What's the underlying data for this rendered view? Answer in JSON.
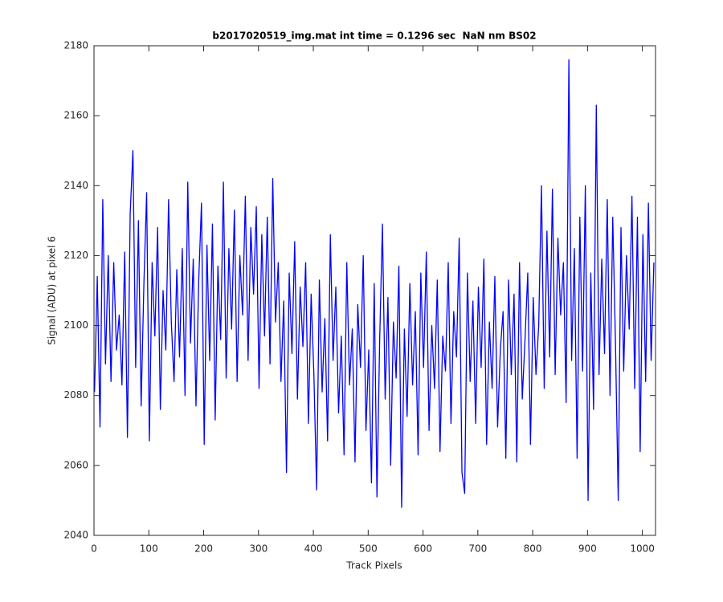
{
  "chart_data": {
    "type": "line",
    "title": "b2017020519_img.mat int time = 0.1296 sec  NaN nm BS02",
    "x_label": "Track Pixels",
    "y_label": "Signal (ADU) at pixel 6",
    "xlim": [
      0,
      1024
    ],
    "xticks": [
      0,
      100,
      200,
      300,
      400,
      500,
      600,
      700,
      800,
      900,
      1000
    ],
    "ylim": [
      2040,
      2180
    ],
    "yticks": [
      2040,
      2060,
      2080,
      2100,
      2120,
      2140,
      2160,
      2180
    ],
    "grid": false,
    "series": [
      {
        "color": "#0000ff",
        "x": [
          1,
          6,
          11,
          16,
          21,
          26,
          31,
          36,
          41,
          46,
          51,
          56,
          61,
          66,
          71,
          76,
          81,
          86,
          91,
          96,
          101,
          106,
          111,
          116,
          121,
          126,
          131,
          136,
          141,
          146,
          151,
          156,
          161,
          166,
          171,
          176,
          181,
          186,
          191,
          196,
          201,
          206,
          211,
          216,
          221,
          226,
          231,
          236,
          241,
          246,
          251,
          256,
          261,
          266,
          271,
          276,
          281,
          286,
          291,
          296,
          301,
          306,
          311,
          316,
          321,
          326,
          331,
          336,
          341,
          346,
          351,
          356,
          361,
          366,
          371,
          376,
          381,
          386,
          391,
          396,
          401,
          406,
          411,
          416,
          421,
          426,
          431,
          436,
          441,
          446,
          451,
          456,
          461,
          466,
          471,
          476,
          481,
          486,
          491,
          496,
          501,
          506,
          511,
          516,
          521,
          526,
          531,
          536,
          541,
          546,
          551,
          556,
          561,
          566,
          571,
          576,
          581,
          586,
          591,
          596,
          601,
          606,
          611,
          616,
          621,
          626,
          631,
          636,
          641,
          646,
          651,
          656,
          661,
          666,
          671,
          676,
          681,
          686,
          691,
          696,
          701,
          706,
          711,
          716,
          721,
          726,
          731,
          736,
          741,
          746,
          751,
          756,
          761,
          766,
          771,
          776,
          781,
          786,
          791,
          796,
          801,
          806,
          811,
          816,
          821,
          826,
          831,
          836,
          841,
          846,
          851,
          856,
          861,
          866,
          871,
          876,
          881,
          886,
          891,
          896,
          901,
          906,
          911,
          916,
          921,
          926,
          931,
          936,
          941,
          946,
          951,
          956,
          961,
          966,
          971,
          976,
          981,
          986,
          991,
          996,
          1001,
          1006,
          1011,
          1016,
          1021
        ],
        "values": [
          2081,
          2114,
          2071,
          2136,
          2089,
          2120,
          2084,
          2118,
          2093,
          2103,
          2083,
          2121,
          2068,
          2132,
          2150,
          2088,
          2130,
          2077,
          2112,
          2138,
          2067,
          2118,
          2097,
          2128,
          2076,
          2110,
          2093,
          2136,
          2101,
          2084,
          2116,
          2091,
          2122,
          2080,
          2141,
          2095,
          2119,
          2077,
          2113,
          2135,
          2066,
          2123,
          2090,
          2129,
          2073,
          2117,
          2096,
          2141,
          2085,
          2122,
          2099,
          2133,
          2084,
          2120,
          2103,
          2137,
          2090,
          2128,
          2109,
          2134,
          2082,
          2126,
          2097,
          2131,
          2089,
          2142,
          2101,
          2118,
          2084,
          2107,
          2058,
          2115,
          2092,
          2124,
          2079,
          2111,
          2094,
          2118,
          2072,
          2109,
          2086,
          2053,
          2113,
          2081,
          2102,
          2067,
          2126,
          2090,
          2111,
          2075,
          2097,
          2063,
          2118,
          2083,
          2099,
          2061,
          2106,
          2088,
          2120,
          2070,
          2093,
          2055,
          2112,
          2051,
          2096,
          2129,
          2079,
          2108,
          2060,
          2101,
          2085,
          2117,
          2048,
          2099,
          2074,
          2112,
          2083,
          2104,
          2063,
          2115,
          2088,
          2121,
          2070,
          2100,
          2082,
          2113,
          2064,
          2097,
          2087,
          2118,
          2072,
          2104,
          2091,
          2125,
          2058,
          2052,
          2115,
          2084,
          2107,
          2072,
          2111,
          2088,
          2119,
          2066,
          2101,
          2082,
          2114,
          2071,
          2093,
          2104,
          2062,
          2113,
          2086,
          2109,
          2061,
          2118,
          2079,
          2096,
          2115,
          2066,
          2108,
          2086,
          2100,
          2140,
          2082,
          2127,
          2091,
          2139,
          2086,
          2125,
          2103,
          2118,
          2078,
          2176,
          2090,
          2122,
          2062,
          2131,
          2087,
          2140,
          2050,
          2115,
          2076,
          2163,
          2086,
          2119,
          2092,
          2136,
          2080,
          2131,
          2095,
          2050,
          2128,
          2087,
          2120,
          2099,
          2137,
          2082,
          2131,
          2064,
          2126,
          2084,
          2135,
          2090,
          2118
        ]
      }
    ]
  }
}
